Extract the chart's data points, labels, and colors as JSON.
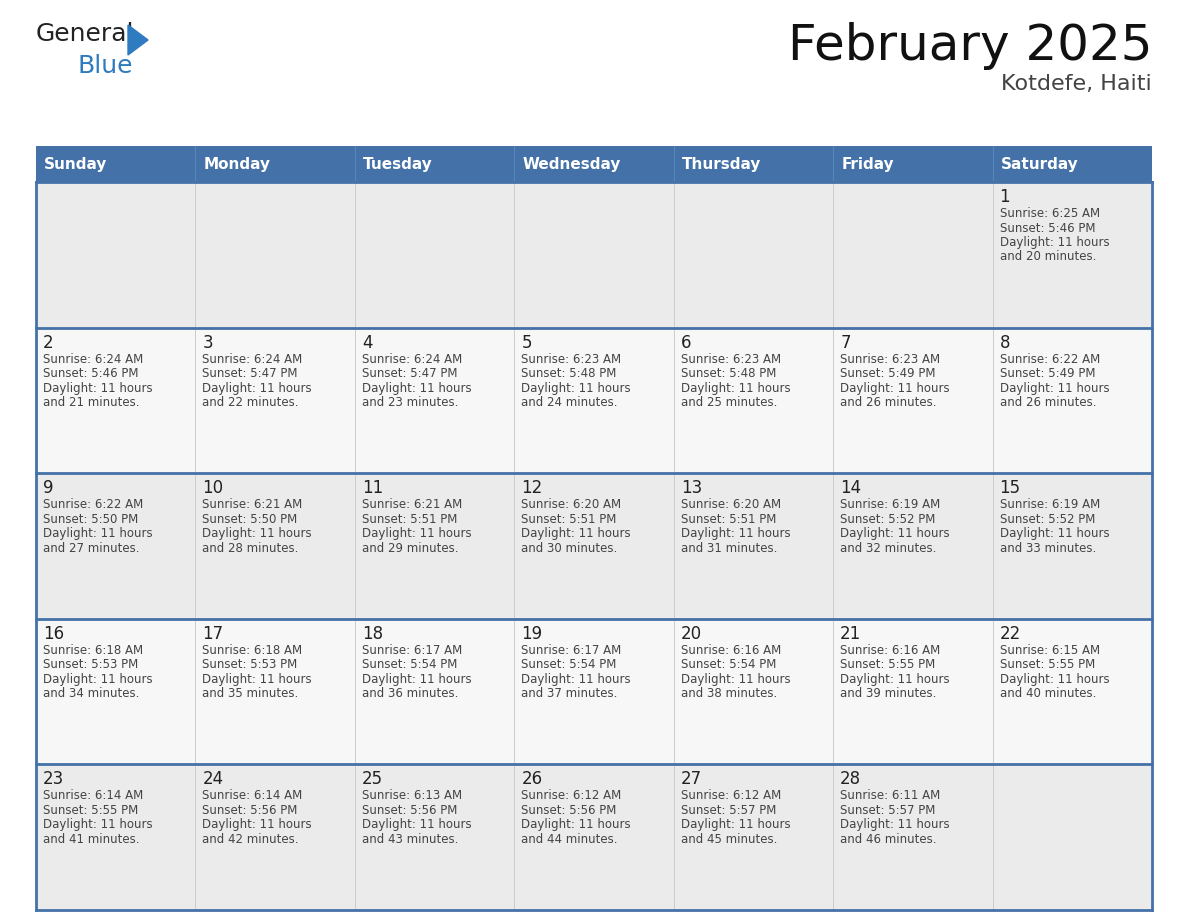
{
  "title": "February 2025",
  "subtitle": "Kotdefe, Haiti",
  "header_bg": "#4472a8",
  "header_text_color": "#ffffff",
  "day_names": [
    "Sunday",
    "Monday",
    "Tuesday",
    "Wednesday",
    "Thursday",
    "Friday",
    "Saturday"
  ],
  "cell_bg_row0": "#ebebeb",
  "cell_bg_row1": "#f7f7f7",
  "cell_bg_row2": "#ebebeb",
  "cell_bg_row3": "#f7f7f7",
  "cell_bg_row4": "#ebebeb",
  "cell_border_color": "#4472a8",
  "inner_line_color": "#cccccc",
  "text_color": "#444444",
  "number_color": "#222222",
  "logo_general_color": "#222222",
  "logo_blue_color": "#2e7bbf",
  "weeks": [
    [
      null,
      null,
      null,
      null,
      null,
      null,
      1
    ],
    [
      2,
      3,
      4,
      5,
      6,
      7,
      8
    ],
    [
      9,
      10,
      11,
      12,
      13,
      14,
      15
    ],
    [
      16,
      17,
      18,
      19,
      20,
      21,
      22
    ],
    [
      23,
      24,
      25,
      26,
      27,
      28,
      null
    ]
  ],
  "cell_data": {
    "1": {
      "sunrise": "6:25 AM",
      "sunset": "5:46 PM",
      "daylight": "11 hours and 20 minutes."
    },
    "2": {
      "sunrise": "6:24 AM",
      "sunset": "5:46 PM",
      "daylight": "11 hours and 21 minutes."
    },
    "3": {
      "sunrise": "6:24 AM",
      "sunset": "5:47 PM",
      "daylight": "11 hours and 22 minutes."
    },
    "4": {
      "sunrise": "6:24 AM",
      "sunset": "5:47 PM",
      "daylight": "11 hours and 23 minutes."
    },
    "5": {
      "sunrise": "6:23 AM",
      "sunset": "5:48 PM",
      "daylight": "11 hours and 24 minutes."
    },
    "6": {
      "sunrise": "6:23 AM",
      "sunset": "5:48 PM",
      "daylight": "11 hours and 25 minutes."
    },
    "7": {
      "sunrise": "6:23 AM",
      "sunset": "5:49 PM",
      "daylight": "11 hours and 26 minutes."
    },
    "8": {
      "sunrise": "6:22 AM",
      "sunset": "5:49 PM",
      "daylight": "11 hours and 26 minutes."
    },
    "9": {
      "sunrise": "6:22 AM",
      "sunset": "5:50 PM",
      "daylight": "11 hours and 27 minutes."
    },
    "10": {
      "sunrise": "6:21 AM",
      "sunset": "5:50 PM",
      "daylight": "11 hours and 28 minutes."
    },
    "11": {
      "sunrise": "6:21 AM",
      "sunset": "5:51 PM",
      "daylight": "11 hours and 29 minutes."
    },
    "12": {
      "sunrise": "6:20 AM",
      "sunset": "5:51 PM",
      "daylight": "11 hours and 30 minutes."
    },
    "13": {
      "sunrise": "6:20 AM",
      "sunset": "5:51 PM",
      "daylight": "11 hours and 31 minutes."
    },
    "14": {
      "sunrise": "6:19 AM",
      "sunset": "5:52 PM",
      "daylight": "11 hours and 32 minutes."
    },
    "15": {
      "sunrise": "6:19 AM",
      "sunset": "5:52 PM",
      "daylight": "11 hours and 33 minutes."
    },
    "16": {
      "sunrise": "6:18 AM",
      "sunset": "5:53 PM",
      "daylight": "11 hours and 34 minutes."
    },
    "17": {
      "sunrise": "6:18 AM",
      "sunset": "5:53 PM",
      "daylight": "11 hours and 35 minutes."
    },
    "18": {
      "sunrise": "6:17 AM",
      "sunset": "5:54 PM",
      "daylight": "11 hours and 36 minutes."
    },
    "19": {
      "sunrise": "6:17 AM",
      "sunset": "5:54 PM",
      "daylight": "11 hours and 37 minutes."
    },
    "20": {
      "sunrise": "6:16 AM",
      "sunset": "5:54 PM",
      "daylight": "11 hours and 38 minutes."
    },
    "21": {
      "sunrise": "6:16 AM",
      "sunset": "5:55 PM",
      "daylight": "11 hours and 39 minutes."
    },
    "22": {
      "sunrise": "6:15 AM",
      "sunset": "5:55 PM",
      "daylight": "11 hours and 40 minutes."
    },
    "23": {
      "sunrise": "6:14 AM",
      "sunset": "5:55 PM",
      "daylight": "11 hours and 41 minutes."
    },
    "24": {
      "sunrise": "6:14 AM",
      "sunset": "5:56 PM",
      "daylight": "11 hours and 42 minutes."
    },
    "25": {
      "sunrise": "6:13 AM",
      "sunset": "5:56 PM",
      "daylight": "11 hours and 43 minutes."
    },
    "26": {
      "sunrise": "6:12 AM",
      "sunset": "5:56 PM",
      "daylight": "11 hours and 44 minutes."
    },
    "27": {
      "sunrise": "6:12 AM",
      "sunset": "5:57 PM",
      "daylight": "11 hours and 45 minutes."
    },
    "28": {
      "sunrise": "6:11 AM",
      "sunset": "5:57 PM",
      "daylight": "11 hours and 46 minutes."
    }
  },
  "fig_width": 11.88,
  "fig_height": 9.18,
  "dpi": 100
}
